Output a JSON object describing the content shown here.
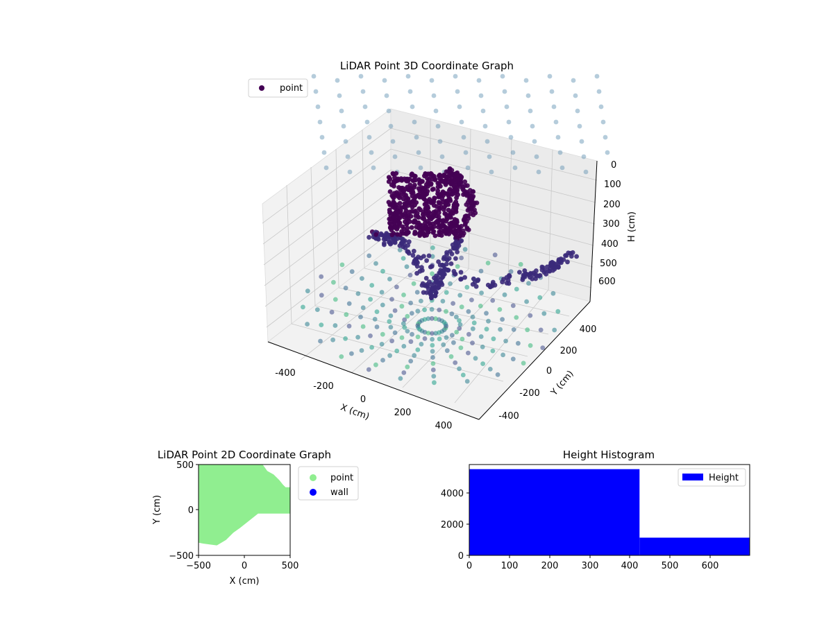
{
  "chart_data": [
    {
      "type": "scatter",
      "title": "LiDAR Point 3D Coordinate Graph",
      "xlabel": "X (cm)",
      "ylabel": "Y (cm)",
      "zlabel": "H (cm)",
      "x_ticks": [
        -400,
        -200,
        0,
        200,
        400
      ],
      "y_ticks": [
        -400,
        -200,
        0,
        200,
        400
      ],
      "z_ticks": [
        0,
        100,
        200,
        300,
        400,
        500,
        600
      ],
      "xlim": [
        -500,
        500
      ],
      "ylim": [
        -500,
        500
      ],
      "zlim": [
        0,
        650
      ],
      "z_axis_inverted": true,
      "grid": true,
      "legend": {
        "placement": "upper-left",
        "entries": [
          "point"
        ]
      },
      "colormap": "viridis (dark purple = near/low H, teal = far edge points)",
      "series": [
        {
          "name": "point",
          "description": "dense cluster of points forming a central column with two arms and a surrounding radial grid of sampled ceiling/floor points",
          "points_sample": [
            {
              "x": -100,
              "y": 300,
              "h": 80
            },
            {
              "x": 0,
              "y": 300,
              "h": 150
            },
            {
              "x": 60,
              "y": 250,
              "h": 200
            },
            {
              "x": 40,
              "y": 150,
              "h": 300
            },
            {
              "x": 20,
              "y": 50,
              "h": 420
            },
            {
              "x": 0,
              "y": 0,
              "h": 500
            },
            {
              "x": -200,
              "y": 100,
              "h": 350
            },
            {
              "x": -300,
              "y": 0,
              "h": 300
            },
            {
              "x": 200,
              "y": 100,
              "h": 450
            },
            {
              "x": 400,
              "y": 250,
              "h": 400
            },
            {
              "x": 500,
              "y": 350,
              "h": 350
            }
          ]
        }
      ]
    },
    {
      "type": "scatter",
      "title": "LiDAR Point 2D Coordinate Graph",
      "xlabel": "X (cm)",
      "ylabel": "Y (cm)",
      "x_ticks": [
        "−500",
        "0",
        "500"
      ],
      "y_ticks": [
        "500",
        "0",
        "−500"
      ],
      "xlim": [
        -500,
        500
      ],
      "ylim": [
        -500,
        500
      ],
      "legend": {
        "placement": "outside-right",
        "entries": [
          "point",
          "wall"
        ]
      },
      "series": [
        {
          "name": "point",
          "color": "#90ee90",
          "region_boundary": [
            {
              "x": -500,
              "y": 500
            },
            {
              "x": 200,
              "y": 500
            },
            {
              "x": 250,
              "y": 430
            },
            {
              "x": 320,
              "y": 390
            },
            {
              "x": 380,
              "y": 330
            },
            {
              "x": 420,
              "y": 280
            },
            {
              "x": 450,
              "y": 250
            },
            {
              "x": 500,
              "y": 250
            },
            {
              "x": 500,
              "y": -40
            },
            {
              "x": 150,
              "y": -40
            },
            {
              "x": 100,
              "y": -80
            },
            {
              "x": -50,
              "y": -200
            },
            {
              "x": -120,
              "y": -250
            },
            {
              "x": -200,
              "y": -330
            },
            {
              "x": -300,
              "y": -390
            },
            {
              "x": -380,
              "y": -380
            },
            {
              "x": -450,
              "y": -370
            },
            {
              "x": -500,
              "y": -360
            }
          ]
        },
        {
          "name": "wall",
          "color": "#0000ff",
          "points": []
        }
      ]
    },
    {
      "type": "bar",
      "title": "Height Histogram",
      "xlabel": "",
      "ylabel": "",
      "x_ticks": [
        "0",
        "100",
        "200",
        "300",
        "400",
        "500",
        "600"
      ],
      "y_ticks": [
        "0",
        "2000",
        "4000"
      ],
      "xlim": [
        0,
        700
      ],
      "ylim": [
        0,
        5900
      ],
      "legend": {
        "placement": "top-right",
        "entries": [
          "Height"
        ]
      },
      "series": [
        {
          "name": "Height",
          "color": "#0000ff",
          "bins": [
            {
              "range": [
                0,
                425
              ],
              "count": 5600
            },
            {
              "range": [
                425,
                700
              ],
              "count": 1150
            }
          ]
        }
      ]
    }
  ]
}
